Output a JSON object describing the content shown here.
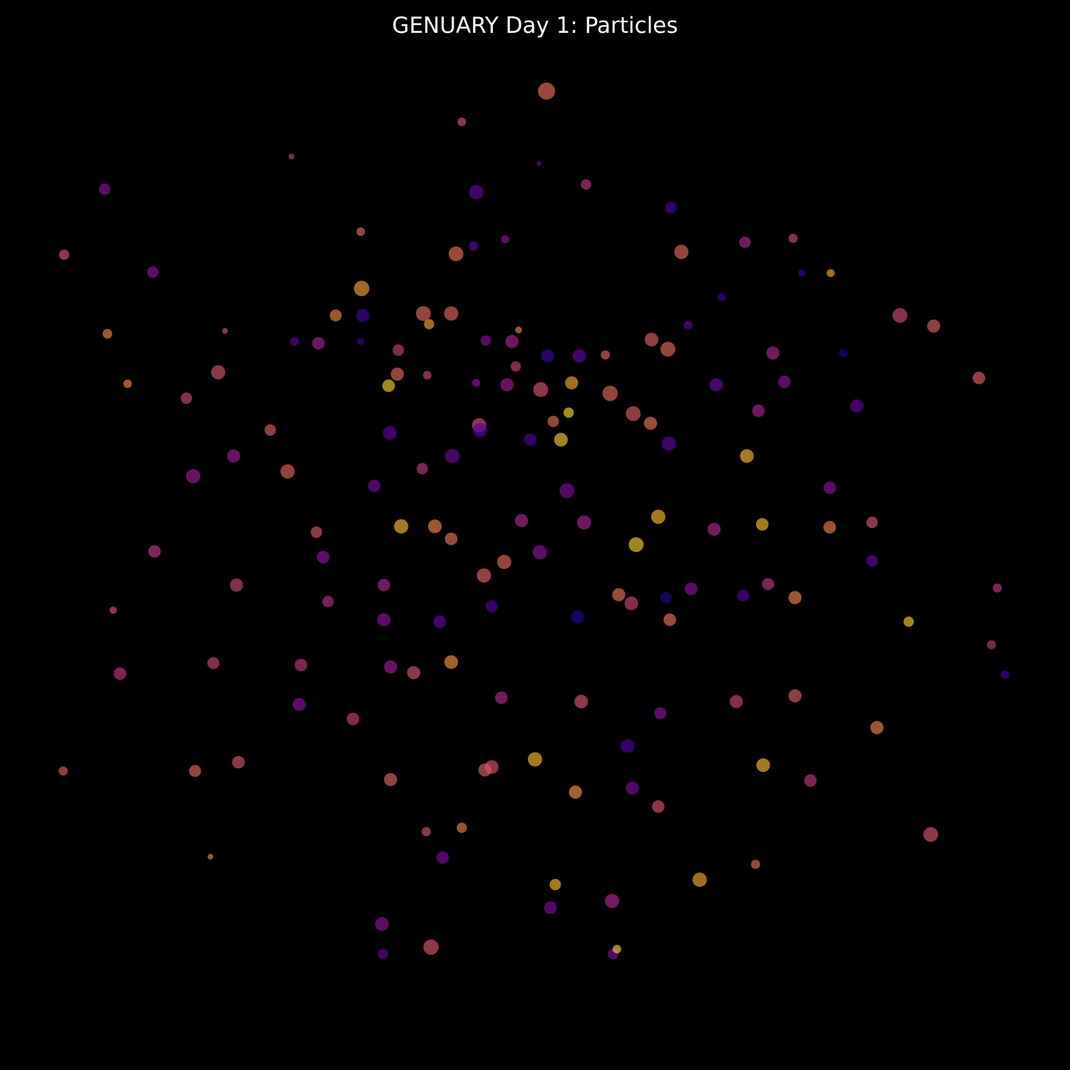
{
  "chart_data": {
    "type": "scatter",
    "title": "GENUARY Day 1: Particles",
    "xlabel": "",
    "ylabel": "",
    "xlim": [
      -5,
      5
    ],
    "ylim": [
      -5,
      5
    ],
    "axes_visible": false,
    "grid": false,
    "legend": "none",
    "background": "#000000",
    "colormap": [
      "#0d0887",
      "#5c01a6",
      "#9c179e",
      "#cc4778",
      "#ed7953",
      "#fdb42f",
      "#f0f921"
    ],
    "marker_alpha": 0.65,
    "series": [
      {
        "points": [
          {
            "x": 0.12,
            "y": 4.61,
            "size": 3.0,
            "c": 0.64
          },
          {
            "x": -0.76,
            "y": 4.29,
            "size": 1.5,
            "c": 0.55
          },
          {
            "x": -2.53,
            "y": 3.93,
            "size": 1.0,
            "c": 0.48
          },
          {
            "x": 0.04,
            "y": 3.86,
            "size": 0.8,
            "c": 0.22
          },
          {
            "x": -0.61,
            "y": 3.56,
            "size": 2.5,
            "c": 0.2
          },
          {
            "x": 0.53,
            "y": 3.64,
            "size": 1.8,
            "c": 0.45
          },
          {
            "x": 1.41,
            "y": 3.4,
            "size": 2.0,
            "c": 0.12
          },
          {
            "x": -1.81,
            "y": 3.15,
            "size": 1.5,
            "c": 0.62
          },
          {
            "x": -0.64,
            "y": 3.0,
            "size": 1.6,
            "c": 0.2
          },
          {
            "x": -0.31,
            "y": 3.07,
            "size": 1.4,
            "c": 0.32
          },
          {
            "x": 1.52,
            "y": 2.94,
            "size": 2.5,
            "c": 0.62
          },
          {
            "x": -0.82,
            "y": 2.92,
            "size": 2.6,
            "c": 0.64
          },
          {
            "x": 2.18,
            "y": 3.04,
            "size": 2.0,
            "c": 0.4
          },
          {
            "x": 2.68,
            "y": 3.08,
            "size": 1.6,
            "c": 0.52
          },
          {
            "x": 2.77,
            "y": 2.72,
            "size": 1.2,
            "c": 0.12
          },
          {
            "x": -1.8,
            "y": 2.56,
            "size": 2.7,
            "c": 0.78
          },
          {
            "x": 1.94,
            "y": 2.47,
            "size": 1.4,
            "c": 0.1
          },
          {
            "x": 3.07,
            "y": 2.72,
            "size": 1.4,
            "c": 0.8
          },
          {
            "x": -3.97,
            "y": 2.73,
            "size": 2.0,
            "c": 0.3
          },
          {
            "x": -1.79,
            "y": 2.28,
            "size": 2.3,
            "c": 0.12
          },
          {
            "x": -1.16,
            "y": 2.3,
            "size": 2.6,
            "c": 0.62
          },
          {
            "x": -0.87,
            "y": 2.3,
            "size": 2.5,
            "c": 0.6
          },
          {
            "x": -1.1,
            "y": 2.19,
            "size": 1.8,
            "c": 0.78
          },
          {
            "x": 3.79,
            "y": 2.28,
            "size": 2.6,
            "c": 0.52
          },
          {
            "x": 4.14,
            "y": 2.17,
            "size": 2.3,
            "c": 0.58
          },
          {
            "x": 1.59,
            "y": 2.18,
            "size": 1.5,
            "c": 0.2
          },
          {
            "x": -0.51,
            "y": 2.02,
            "size": 1.8,
            "c": 0.28
          },
          {
            "x": -0.17,
            "y": 2.13,
            "size": 1.2,
            "c": 0.7
          },
          {
            "x": 1.21,
            "y": 2.03,
            "size": 2.4,
            "c": 0.58
          },
          {
            "x": 0.46,
            "y": 1.86,
            "size": 2.3,
            "c": 0.2
          },
          {
            "x": 0.13,
            "y": 1.86,
            "size": 2.3,
            "c": 0.1
          },
          {
            "x": -2.07,
            "y": 2.28,
            "size": 2.1,
            "c": 0.7
          },
          {
            "x": -0.24,
            "y": 2.01,
            "size": 2.3,
            "c": 0.38
          },
          {
            "x": -1.42,
            "y": 1.92,
            "size": 2.0,
            "c": 0.48
          },
          {
            "x": 0.73,
            "y": 1.87,
            "size": 1.6,
            "c": 0.62
          },
          {
            "x": 1.38,
            "y": 1.93,
            "size": 2.6,
            "c": 0.62
          },
          {
            "x": -4.44,
            "y": 2.09,
            "size": 1.7,
            "c": 0.7
          },
          {
            "x": -3.22,
            "y": 2.12,
            "size": 1.0,
            "c": 0.55
          },
          {
            "x": -2.5,
            "y": 2.01,
            "size": 1.5,
            "c": 0.18
          },
          {
            "x": -1.81,
            "y": 2.01,
            "size": 1.2,
            "c": 0.12
          },
          {
            "x": -1.43,
            "y": 1.67,
            "size": 2.3,
            "c": 0.62
          },
          {
            "x": -2.25,
            "y": 1.99,
            "size": 2.2,
            "c": 0.38
          },
          {
            "x": -3.29,
            "y": 1.69,
            "size": 2.5,
            "c": 0.55
          },
          {
            "x": -3.62,
            "y": 1.42,
            "size": 2.0,
            "c": 0.5
          },
          {
            "x": 2.47,
            "y": 1.89,
            "size": 2.3,
            "c": 0.4
          },
          {
            "x": 2.59,
            "y": 1.59,
            "size": 2.2,
            "c": 0.3
          },
          {
            "x": 3.2,
            "y": 1.89,
            "size": 1.5,
            "c": 0.02
          },
          {
            "x": 4.61,
            "y": 1.63,
            "size": 2.2,
            "c": 0.58
          },
          {
            "x": -4.23,
            "y": 1.57,
            "size": 1.5,
            "c": 0.7
          },
          {
            "x": -2.75,
            "y": 1.09,
            "size": 2.0,
            "c": 0.58
          },
          {
            "x": -1.52,
            "y": 1.55,
            "size": 2.2,
            "c": 0.9
          },
          {
            "x": -1.12,
            "y": 1.66,
            "size": 1.5,
            "c": 0.5
          },
          {
            "x": -0.61,
            "y": 1.58,
            "size": 1.4,
            "c": 0.3
          },
          {
            "x": -0.2,
            "y": 1.75,
            "size": 1.8,
            "c": 0.48
          },
          {
            "x": -0.58,
            "y": 1.14,
            "size": 2.5,
            "c": 0.55
          },
          {
            "x": -0.29,
            "y": 1.56,
            "size": 2.3,
            "c": 0.35
          },
          {
            "x": 0.38,
            "y": 1.58,
            "size": 2.3,
            "c": 0.8
          },
          {
            "x": 0.06,
            "y": 1.51,
            "size": 2.6,
            "c": 0.55
          },
          {
            "x": 0.78,
            "y": 1.47,
            "size": 2.7,
            "c": 0.62
          },
          {
            "x": 0.19,
            "y": 1.18,
            "size": 2.0,
            "c": 0.62
          },
          {
            "x": 0.35,
            "y": 1.27,
            "size": 1.8,
            "c": 0.92
          },
          {
            "x": 1.02,
            "y": 1.26,
            "size": 2.6,
            "c": 0.58
          },
          {
            "x": 1.2,
            "y": 1.16,
            "size": 2.3,
            "c": 0.66
          },
          {
            "x": 1.88,
            "y": 1.56,
            "size": 2.3,
            "c": 0.22
          },
          {
            "x": 2.32,
            "y": 1.29,
            "size": 2.2,
            "c": 0.38
          },
          {
            "x": -0.57,
            "y": 1.09,
            "size": 2.5,
            "c": 0.15
          },
          {
            "x": -1.51,
            "y": 1.06,
            "size": 2.4,
            "c": 0.18
          },
          {
            "x": -0.86,
            "y": 0.82,
            "size": 2.5,
            "c": 0.22
          },
          {
            "x": -0.05,
            "y": 0.99,
            "size": 2.2,
            "c": 0.12
          },
          {
            "x": 0.27,
            "y": 0.99,
            "size": 2.4,
            "c": 0.9
          },
          {
            "x": 0.33,
            "y": 0.46,
            "size": 2.6,
            "c": 0.25
          },
          {
            "x": 1.39,
            "y": 0.95,
            "size": 2.5,
            "c": 0.18
          },
          {
            "x": 2.2,
            "y": 0.82,
            "size": 2.4,
            "c": 0.85
          },
          {
            "x": 3.06,
            "y": 0.49,
            "size": 2.2,
            "c": 0.3
          },
          {
            "x": 3.34,
            "y": 1.34,
            "size": 2.3,
            "c": 0.2
          },
          {
            "x": -3.55,
            "y": 0.61,
            "size": 2.5,
            "c": 0.35
          },
          {
            "x": -3.13,
            "y": 0.82,
            "size": 2.3,
            "c": 0.35
          },
          {
            "x": -2.57,
            "y": 0.66,
            "size": 2.5,
            "c": 0.6
          },
          {
            "x": -1.67,
            "y": 0.51,
            "size": 2.2,
            "c": 0.25
          },
          {
            "x": -1.17,
            "y": 0.69,
            "size": 2.0,
            "c": 0.45
          },
          {
            "x": -1.39,
            "y": 0.09,
            "size": 2.5,
            "c": 0.85
          },
          {
            "x": -1.04,
            "y": 0.09,
            "size": 2.4,
            "c": 0.7
          },
          {
            "x": -0.14,
            "y": 0.15,
            "size": 2.3,
            "c": 0.4
          },
          {
            "x": 0.51,
            "y": 0.13,
            "size": 2.5,
            "c": 0.38
          },
          {
            "x": 1.05,
            "y": -0.1,
            "size": 2.6,
            "c": 0.9
          },
          {
            "x": 1.28,
            "y": 0.19,
            "size": 2.5,
            "c": 0.85
          },
          {
            "x": 1.86,
            "y": 0.06,
            "size": 2.3,
            "c": 0.4
          },
          {
            "x": 2.36,
            "y": 0.11,
            "size": 2.2,
            "c": 0.85
          },
          {
            "x": 3.06,
            "y": 0.08,
            "size": 2.2,
            "c": 0.68
          },
          {
            "x": 3.5,
            "y": 0.13,
            "size": 2.0,
            "c": 0.55
          },
          {
            "x": -2.2,
            "y": -0.23,
            "size": 2.2,
            "c": 0.3
          },
          {
            "x": -2.27,
            "y": 0.03,
            "size": 2.0,
            "c": 0.55
          },
          {
            "x": -0.87,
            "y": -0.04,
            "size": 2.2,
            "c": 0.65
          },
          {
            "x": -0.53,
            "y": -0.42,
            "size": 2.5,
            "c": 0.6
          },
          {
            "x": -0.32,
            "y": -0.28,
            "size": 2.5,
            "c": 0.62
          },
          {
            "x": 0.05,
            "y": -0.18,
            "size": 2.5,
            "c": 0.3
          },
          {
            "x": 0.87,
            "y": -0.62,
            "size": 2.3,
            "c": 0.65
          },
          {
            "x": 1.36,
            "y": -0.65,
            "size": 2.0,
            "c": 0.05
          },
          {
            "x": 1.62,
            "y": -0.56,
            "size": 2.2,
            "c": 0.28
          },
          {
            "x": 2.16,
            "y": -0.63,
            "size": 2.1,
            "c": 0.15
          },
          {
            "x": 3.5,
            "y": -0.27,
            "size": 2.0,
            "c": 0.2
          },
          {
            "x": -3.95,
            "y": -0.17,
            "size": 2.2,
            "c": 0.45
          },
          {
            "x": -4.38,
            "y": -0.78,
            "size": 1.3,
            "c": 0.55
          },
          {
            "x": -3.1,
            "y": -0.52,
            "size": 2.3,
            "c": 0.5
          },
          {
            "x": -2.15,
            "y": -0.69,
            "size": 2.0,
            "c": 0.42
          },
          {
            "x": -1.57,
            "y": -0.52,
            "size": 2.2,
            "c": 0.4
          },
          {
            "x": -1.57,
            "y": -0.88,
            "size": 2.3,
            "c": 0.3
          },
          {
            "x": -0.99,
            "y": -0.9,
            "size": 2.2,
            "c": 0.2
          },
          {
            "x": -0.45,
            "y": -0.74,
            "size": 2.1,
            "c": 0.15
          },
          {
            "x": 0.44,
            "y": -0.85,
            "size": 2.3,
            "c": 0.05
          },
          {
            "x": 1.0,
            "y": -0.71,
            "size": 2.4,
            "c": 0.5
          },
          {
            "x": 1.4,
            "y": -0.88,
            "size": 2.2,
            "c": 0.65
          },
          {
            "x": 2.42,
            "y": -0.51,
            "size": 2.1,
            "c": 0.45
          },
          {
            "x": 2.7,
            "y": -0.65,
            "size": 2.3,
            "c": 0.7
          },
          {
            "x": 3.88,
            "y": -0.9,
            "size": 1.8,
            "c": 0.9
          },
          {
            "x": -4.31,
            "y": -1.44,
            "size": 2.2,
            "c": 0.45
          },
          {
            "x": -3.34,
            "y": -1.33,
            "size": 2.1,
            "c": 0.5
          },
          {
            "x": -2.43,
            "y": -1.35,
            "size": 2.2,
            "c": 0.45
          },
          {
            "x": -1.5,
            "y": -1.37,
            "size": 2.3,
            "c": 0.35
          },
          {
            "x": -0.87,
            "y": -1.32,
            "size": 2.4,
            "c": 0.75
          },
          {
            "x": -0.35,
            "y": -1.69,
            "size": 2.2,
            "c": 0.4
          },
          {
            "x": 0.48,
            "y": -1.73,
            "size": 2.4,
            "c": 0.55
          },
          {
            "x": 0.96,
            "y": -2.19,
            "size": 2.4,
            "c": 0.15
          },
          {
            "x": 1.3,
            "y": -1.85,
            "size": 2.1,
            "c": 0.3
          },
          {
            "x": 2.09,
            "y": -1.73,
            "size": 2.3,
            "c": 0.5
          },
          {
            "x": 2.7,
            "y": -1.67,
            "size": 2.3,
            "c": 0.58
          },
          {
            "x": 3.55,
            "y": -2.0,
            "size": 2.3,
            "c": 0.7
          },
          {
            "x": -3.08,
            "y": -2.36,
            "size": 2.2,
            "c": 0.55
          },
          {
            "x": -1.89,
            "y": -1.91,
            "size": 2.2,
            "c": 0.48
          },
          {
            "x": -1.26,
            "y": -1.43,
            "size": 2.3,
            "c": 0.55
          },
          {
            "x": -0.45,
            "y": -2.41,
            "size": 2.4,
            "c": 0.55
          },
          {
            "x": 0.0,
            "y": -2.33,
            "size": 2.5,
            "c": 0.85
          },
          {
            "x": 1.01,
            "y": -2.63,
            "size": 2.3,
            "c": 0.25
          },
          {
            "x": 1.28,
            "y": -2.82,
            "size": 2.2,
            "c": 0.55
          },
          {
            "x": 2.37,
            "y": -2.39,
            "size": 2.4,
            "c": 0.85
          },
          {
            "x": 2.86,
            "y": -2.55,
            "size": 2.2,
            "c": 0.45
          },
          {
            "x": -0.52,
            "y": -2.44,
            "size": 2.3,
            "c": 0.58
          },
          {
            "x": -1.5,
            "y": -2.54,
            "size": 2.3,
            "c": 0.6
          },
          {
            "x": -2.45,
            "y": -1.76,
            "size": 2.3,
            "c": 0.3
          },
          {
            "x": -1.13,
            "y": -3.08,
            "size": 1.6,
            "c": 0.55
          },
          {
            "x": 0.21,
            "y": -3.63,
            "size": 2.0,
            "c": 0.85
          },
          {
            "x": 0.16,
            "y": -3.87,
            "size": 2.2,
            "c": 0.25
          },
          {
            "x": 1.71,
            "y": -3.58,
            "size": 2.5,
            "c": 0.8
          },
          {
            "x": 2.29,
            "y": -3.42,
            "size": 1.6,
            "c": 0.62
          },
          {
            "x": 4.11,
            "y": -3.11,
            "size": 2.6,
            "c": 0.55
          },
          {
            "x": -4.9,
            "y": -2.45,
            "size": 1.6,
            "c": 0.58
          },
          {
            "x": -3.53,
            "y": -2.45,
            "size": 2.1,
            "c": 0.62
          },
          {
            "x": -3.37,
            "y": -3.34,
            "size": 1.0,
            "c": 0.7
          },
          {
            "x": -0.76,
            "y": -3.04,
            "size": 1.8,
            "c": 0.68
          },
          {
            "x": -0.96,
            "y": -3.35,
            "size": 2.2,
            "c": 0.25
          },
          {
            "x": 0.8,
            "y": -3.8,
            "size": 2.5,
            "c": 0.4
          },
          {
            "x": 0.42,
            "y": -2.67,
            "size": 2.3,
            "c": 0.75
          },
          {
            "x": -1.59,
            "y": -4.04,
            "size": 2.4,
            "c": 0.3
          },
          {
            "x": -1.58,
            "y": -4.35,
            "size": 1.8,
            "c": 0.18
          },
          {
            "x": -1.08,
            "y": -4.28,
            "size": 2.7,
            "c": 0.55
          },
          {
            "x": 0.81,
            "y": -4.35,
            "size": 1.9,
            "c": 0.25
          },
          {
            "x": 0.85,
            "y": -4.3,
            "size": 1.5,
            "c": 0.9
          },
          {
            "x": -4.47,
            "y": 3.59,
            "size": 2.0,
            "c": 0.3
          },
          {
            "x": -4.89,
            "y": 2.91,
            "size": 1.8,
            "c": 0.55
          },
          {
            "x": 4.8,
            "y": -0.55,
            "size": 1.6,
            "c": 0.45
          },
          {
            "x": 4.74,
            "y": -1.14,
            "size": 1.6,
            "c": 0.45
          },
          {
            "x": 4.88,
            "y": -1.45,
            "size": 1.5,
            "c": 0.1
          }
        ]
      }
    ]
  }
}
